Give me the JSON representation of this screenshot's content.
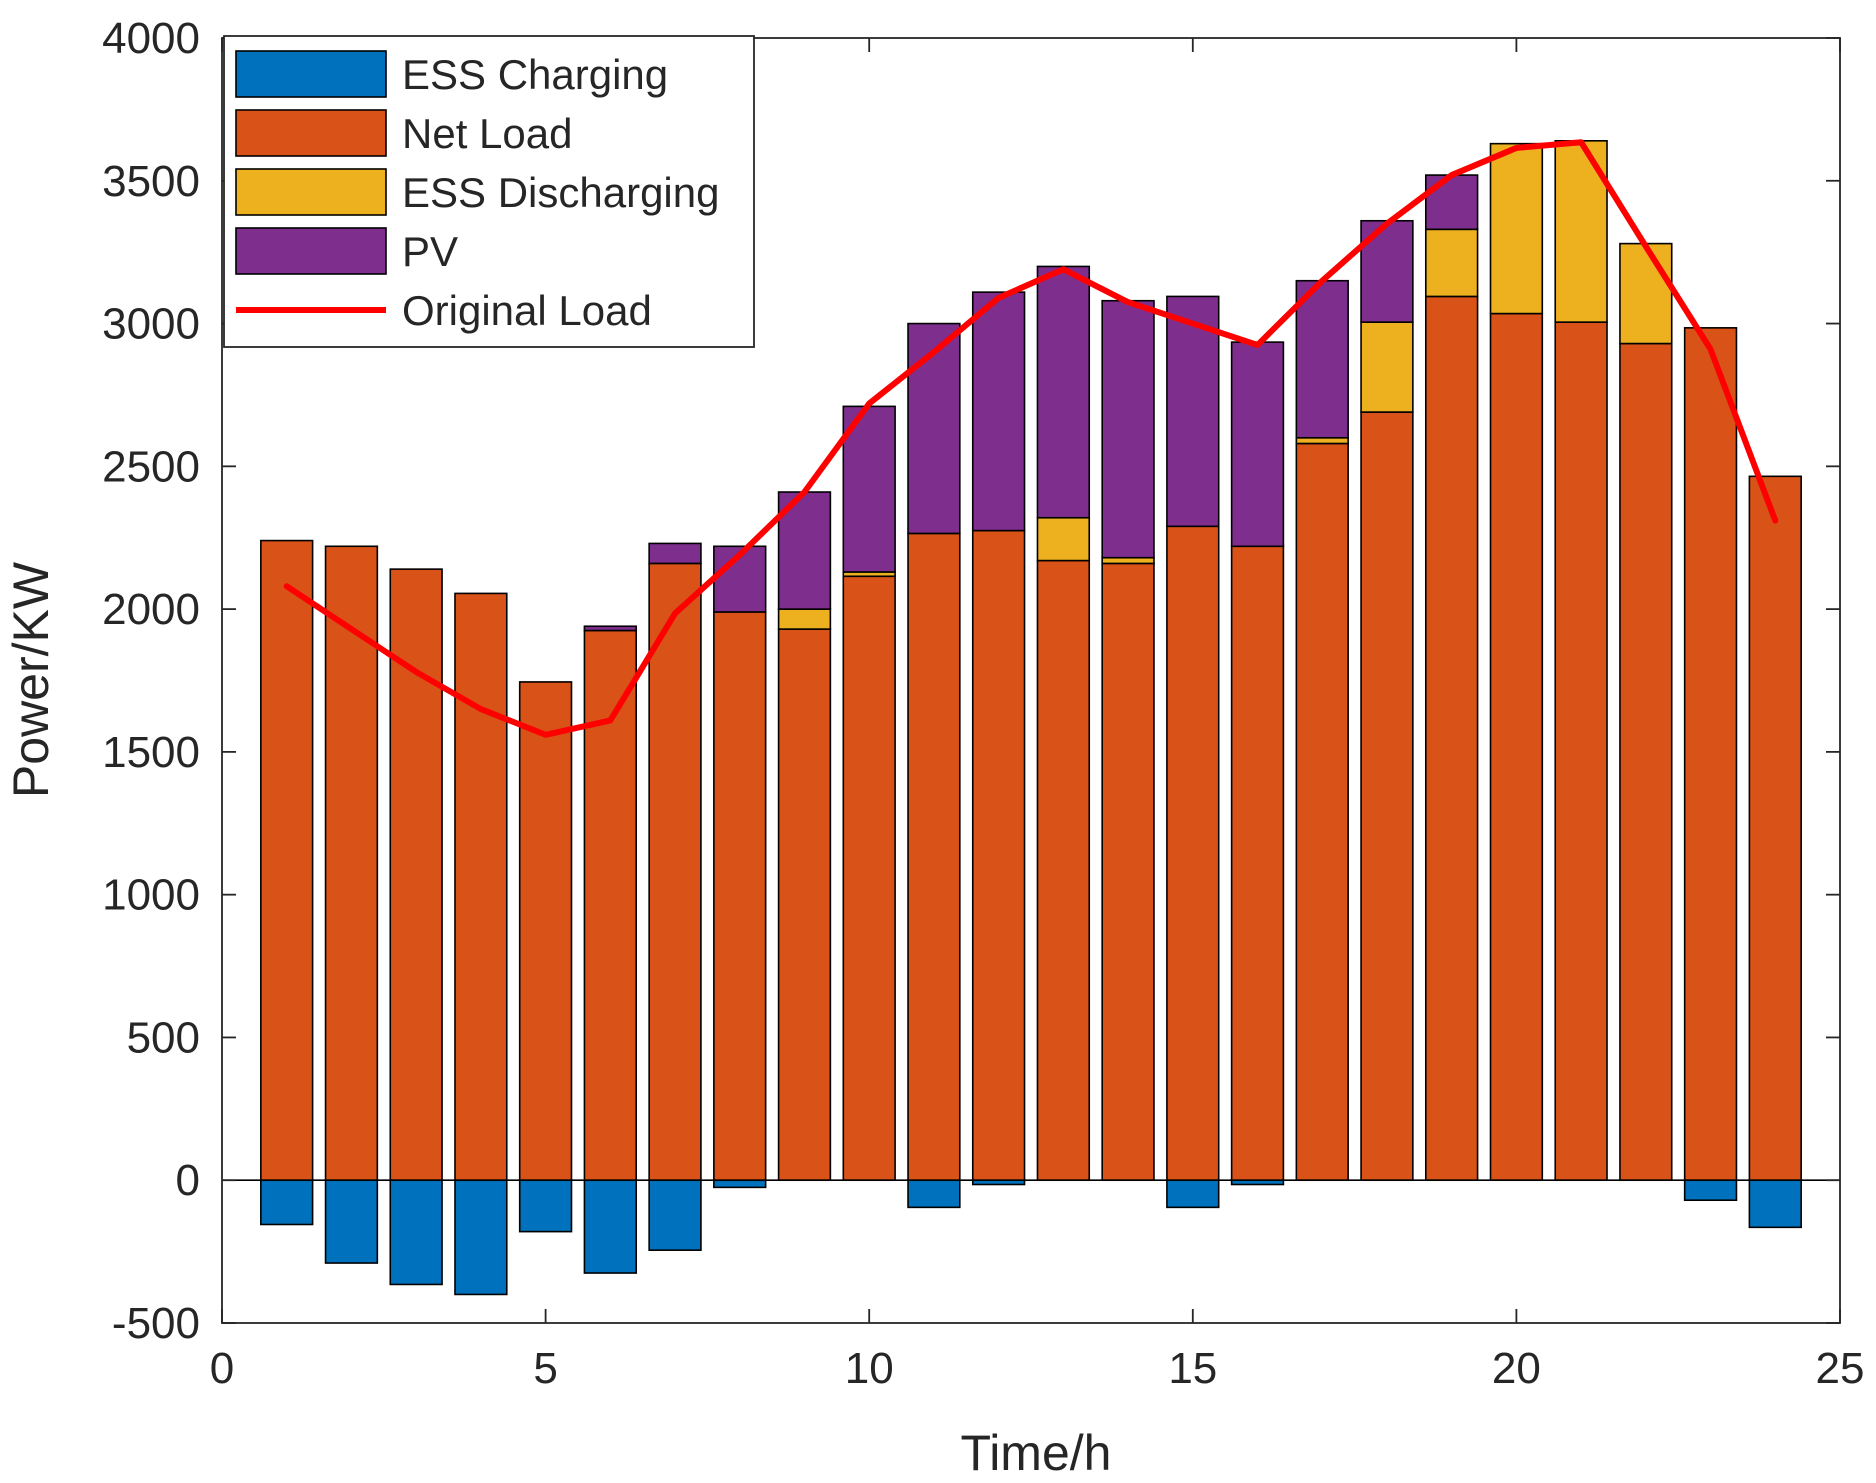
{
  "chart_data": {
    "type": "bar",
    "stacked": true,
    "xlabel": "Time/h",
    "ylabel": "Power/KW",
    "xlim": [
      0,
      25
    ],
    "ylim": [
      -500,
      4000
    ],
    "xticks": [
      0,
      5,
      10,
      15,
      20,
      25
    ],
    "yticks": [
      -500,
      0,
      500,
      1000,
      1500,
      2000,
      2500,
      3000,
      3500,
      4000
    ],
    "x": [
      1,
      2,
      3,
      4,
      5,
      6,
      7,
      8,
      9,
      10,
      11,
      12,
      13,
      14,
      15,
      16,
      17,
      18,
      19,
      20,
      21,
      22,
      23,
      24
    ],
    "series": [
      {
        "name": "ESS Charging",
        "color": "#0072BD",
        "values": [
          -155,
          -290,
          -365,
          -400,
          -180,
          -325,
          -245,
          -25,
          0,
          0,
          -95,
          -15,
          0,
          0,
          -95,
          -15,
          0,
          0,
          0,
          0,
          0,
          0,
          -70,
          -165
        ]
      },
      {
        "name": "Net Load",
        "color": "#D95319",
        "values": [
          2240,
          2220,
          2140,
          2055,
          1745,
          1925,
          2160,
          1990,
          1930,
          2115,
          2265,
          2275,
          2170,
          2160,
          2290,
          2220,
          2580,
          2690,
          3095,
          3035,
          3005,
          2930,
          2985,
          2465
        ]
      },
      {
        "name": "ESS Discharging",
        "color": "#EDB120",
        "values": [
          0,
          0,
          0,
          0,
          0,
          0,
          0,
          0,
          70,
          15,
          0,
          0,
          150,
          20,
          0,
          0,
          20,
          315,
          235,
          595,
          635,
          350,
          0,
          0
        ]
      },
      {
        "name": "PV",
        "color": "#7E2F8E",
        "values": [
          0,
          0,
          0,
          0,
          0,
          15,
          70,
          230,
          410,
          580,
          735,
          835,
          880,
          900,
          805,
          715,
          550,
          355,
          190,
          0,
          0,
          0,
          0,
          0
        ]
      }
    ],
    "line": {
      "name": "Original Load",
      "color": "#FF0000",
      "values": [
        2080,
        1930,
        1780,
        1650,
        1560,
        1610,
        1985,
        2190,
        2410,
        2720,
        2900,
        3090,
        3190,
        3075,
        3000,
        2925,
        3150,
        3350,
        3520,
        3615,
        3635,
        3270,
        2910,
        2310
      ]
    },
    "legend": {
      "location": "top-left",
      "entries": [
        "ESS Charging",
        "Net Load",
        "ESS Discharging",
        "PV",
        "Original Load"
      ]
    }
  }
}
